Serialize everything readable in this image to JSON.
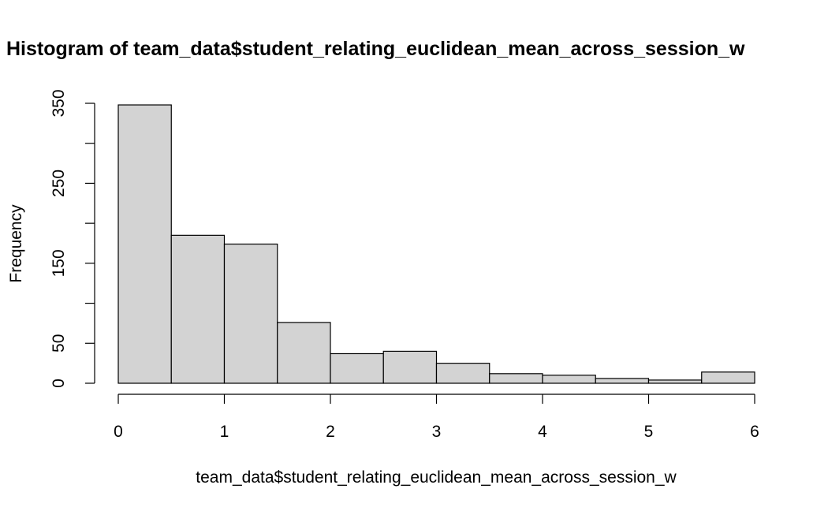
{
  "chart_data": {
    "type": "bar",
    "title": "Histogram of team_data$student_relating_euclidean_mean_across_session_w",
    "xlabel": "team_data$student_relating_euclidean_mean_across_session_w",
    "ylabel": "Frequency",
    "bins": [
      {
        "start": 0.0,
        "end": 0.5,
        "count": 348
      },
      {
        "start": 0.5,
        "end": 1.0,
        "count": 185
      },
      {
        "start": 1.0,
        "end": 1.5,
        "count": 174
      },
      {
        "start": 1.5,
        "end": 2.0,
        "count": 76
      },
      {
        "start": 2.0,
        "end": 2.5,
        "count": 37
      },
      {
        "start": 2.5,
        "end": 3.0,
        "count": 40
      },
      {
        "start": 3.0,
        "end": 3.5,
        "count": 25
      },
      {
        "start": 3.5,
        "end": 4.0,
        "count": 12
      },
      {
        "start": 4.0,
        "end": 4.5,
        "count": 10
      },
      {
        "start": 4.5,
        "end": 5.0,
        "count": 6
      },
      {
        "start": 5.0,
        "end": 5.5,
        "count": 4
      },
      {
        "start": 5.5,
        "end": 6.0,
        "count": 14
      }
    ],
    "x_ticks": [
      "0",
      "1",
      "2",
      "3",
      "4",
      "5",
      "6"
    ],
    "y_ticks": [
      0,
      50,
      100,
      150,
      200,
      250,
      300,
      350
    ],
    "y_tick_labels": [
      "0",
      "50",
      "150",
      "250",
      "350"
    ],
    "xlim": [
      0,
      6
    ],
    "ylim": [
      0,
      350
    ],
    "grid": false,
    "bar_color": "#d3d3d3",
    "edge_color": "#000000"
  }
}
